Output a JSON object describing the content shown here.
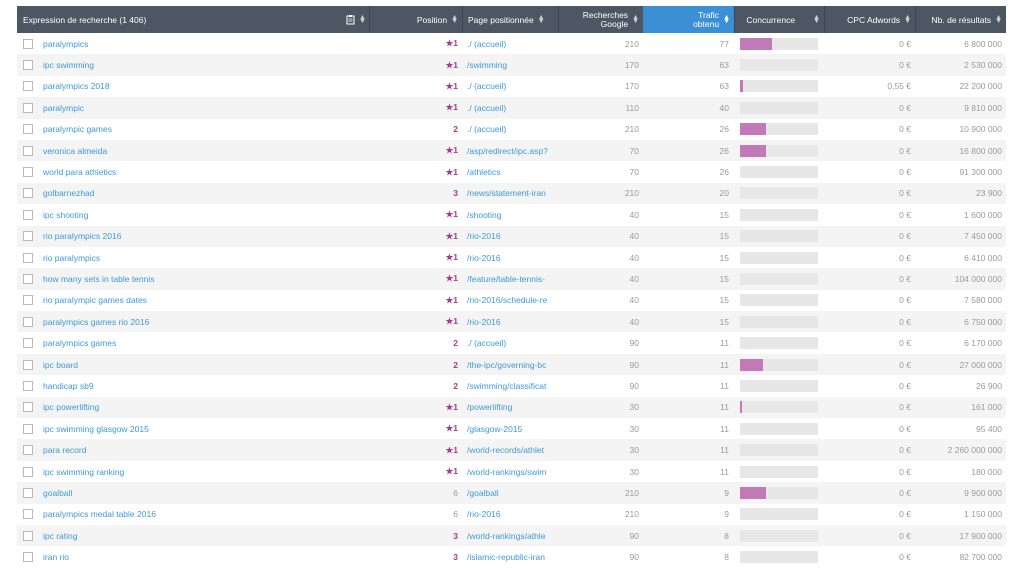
{
  "header": {
    "keyword": "Expression de recherche (1 406)",
    "position": "Position",
    "page": "Page positionnée",
    "searches_line1": "Recherches",
    "searches_line2": "Google",
    "traffic_line1": "Trafic",
    "traffic_line2": "obtenu",
    "competition": "Concurrence",
    "cpc": "CPC Adwords",
    "results": "Nb. de résultats"
  },
  "colors": {
    "header_bg": "#4c5763",
    "active_col": "#3b8fd4",
    "link": "#3d9ad6",
    "position_star": "#a63a8e",
    "competition_fill": "#c279b8"
  },
  "rows": [
    {
      "kw": "paralympics",
      "pos": "★1",
      "page": "./ (accueil)",
      "searches": "210",
      "traffic": "77",
      "comp": 0.41,
      "cpc": "0 €",
      "results": "6 800 000"
    },
    {
      "kw": "ipc swimming",
      "pos": "★1",
      "page": "/swimming",
      "searches": "170",
      "traffic": "63",
      "comp": 0,
      "cpc": "0 €",
      "results": "2 530 000"
    },
    {
      "kw": "paralympics 2018",
      "pos": "★1",
      "page": "./ (accueil)",
      "searches": "170",
      "traffic": "63",
      "comp": 0.04,
      "cpc": "0,55 €",
      "results": "22 200 000"
    },
    {
      "kw": "paralympic",
      "pos": "★1",
      "page": "./ (accueil)",
      "searches": "110",
      "traffic": "40",
      "comp": 0,
      "cpc": "0 €",
      "results": "9 810 000"
    },
    {
      "kw": "paralympic games",
      "pos": "2",
      "page": "./ (accueil)",
      "searches": "210",
      "traffic": "26",
      "comp": 0.33,
      "cpc": "0 €",
      "results": "10 900 000"
    },
    {
      "kw": "veronica almeida",
      "pos": "★1",
      "page": "/asp/redirect/ipc.asp?",
      "searches": "70",
      "traffic": "26",
      "comp": 0.33,
      "cpc": "0 €",
      "results": "16 800 000"
    },
    {
      "kw": "world para athletics",
      "pos": "★1",
      "page": "/athletics",
      "searches": "70",
      "traffic": "26",
      "comp": 0,
      "cpc": "0 €",
      "results": "91 300 000"
    },
    {
      "kw": "golbarnezhad",
      "pos": "3",
      "page": "/news/statement-iran",
      "searches": "210",
      "traffic": "20",
      "comp": 0,
      "cpc": "0 €",
      "results": "23 900"
    },
    {
      "kw": "ipc shooting",
      "pos": "★1",
      "page": "/shooting",
      "searches": "40",
      "traffic": "15",
      "comp": 0,
      "cpc": "0 €",
      "results": "1 600 000"
    },
    {
      "kw": "rio paralympics 2016",
      "pos": "★1",
      "page": "/rio-2016",
      "searches": "40",
      "traffic": "15",
      "comp": 0,
      "cpc": "0 €",
      "results": "7 450 000"
    },
    {
      "kw": "rio paralympics",
      "pos": "★1",
      "page": "/rio-2016",
      "searches": "40",
      "traffic": "15",
      "comp": 0,
      "cpc": "0 €",
      "results": "6 410 000"
    },
    {
      "kw": "how many sets in table tennis",
      "pos": "★1",
      "page": "/feature/table-tennis-",
      "searches": "40",
      "traffic": "15",
      "comp": 0,
      "cpc": "0 €",
      "results": "104 000 000"
    },
    {
      "kw": "rio paralympic games dates",
      "pos": "★1",
      "page": "/rio-2016/schedule-re",
      "searches": "40",
      "traffic": "15",
      "comp": 0,
      "cpc": "0 €",
      "results": "7 580 000"
    },
    {
      "kw": "paralympics games rio 2016",
      "pos": "★1",
      "page": "/rio-2016",
      "searches": "40",
      "traffic": "15",
      "comp": 0,
      "cpc": "0 €",
      "results": "6 750 000"
    },
    {
      "kw": "paralympics games",
      "pos": "2",
      "page": "./ (accueil)",
      "searches": "90",
      "traffic": "11",
      "comp": 0,
      "cpc": "0 €",
      "results": "6 170 000"
    },
    {
      "kw": "ipc board",
      "pos": "2",
      "page": "/the-ipc/governing-bc",
      "searches": "90",
      "traffic": "11",
      "comp": 0.29,
      "cpc": "0 €",
      "results": "27 000 000"
    },
    {
      "kw": "handicap sb9",
      "pos": "2",
      "page": "/swimming/classificat",
      "searches": "90",
      "traffic": "11",
      "comp": 0,
      "cpc": "0 €",
      "results": "26 900"
    },
    {
      "kw": "ipc powerlifting",
      "pos": "★1",
      "page": "/powerlifting",
      "searches": "30",
      "traffic": "11",
      "comp": 0.03,
      "cpc": "0 €",
      "results": "161 000"
    },
    {
      "kw": "ipc swimming glasgow 2015",
      "pos": "★1",
      "page": "/glasgow-2015",
      "searches": "30",
      "traffic": "11",
      "comp": 0,
      "cpc": "0 €",
      "results": "95 400"
    },
    {
      "kw": "para record",
      "pos": "★1",
      "page": "/world-records/athlet",
      "searches": "30",
      "traffic": "11",
      "comp": 0,
      "cpc": "0 €",
      "results": "2 260 000 000"
    },
    {
      "kw": "ipc swimming ranking",
      "pos": "★1",
      "page": "/world-rankings/swim",
      "searches": "30",
      "traffic": "11",
      "comp": 0,
      "cpc": "0 €",
      "results": "180 000"
    },
    {
      "kw": "goalball",
      "pos": "6",
      "page": "/goalball",
      "searches": "210",
      "traffic": "9",
      "comp": 0.33,
      "cpc": "0 €",
      "results": "9 900 000"
    },
    {
      "kw": "paralympics medal table 2016",
      "pos": "6",
      "page": "/rio-2016",
      "searches": "210",
      "traffic": "9",
      "comp": 0,
      "cpc": "0 €",
      "results": "1 150 000"
    },
    {
      "kw": "ipc rating",
      "pos": "3",
      "page": "/world-rankings/athle",
      "searches": "90",
      "traffic": "8",
      "comp": 0,
      "cpc": "0 €",
      "results": "17 900 000"
    },
    {
      "kw": "iran rio",
      "pos": "3",
      "page": "/islamic-republic-iran",
      "searches": "90",
      "traffic": "8",
      "comp": 0,
      "cpc": "0 €",
      "results": "82 700 000"
    }
  ]
}
